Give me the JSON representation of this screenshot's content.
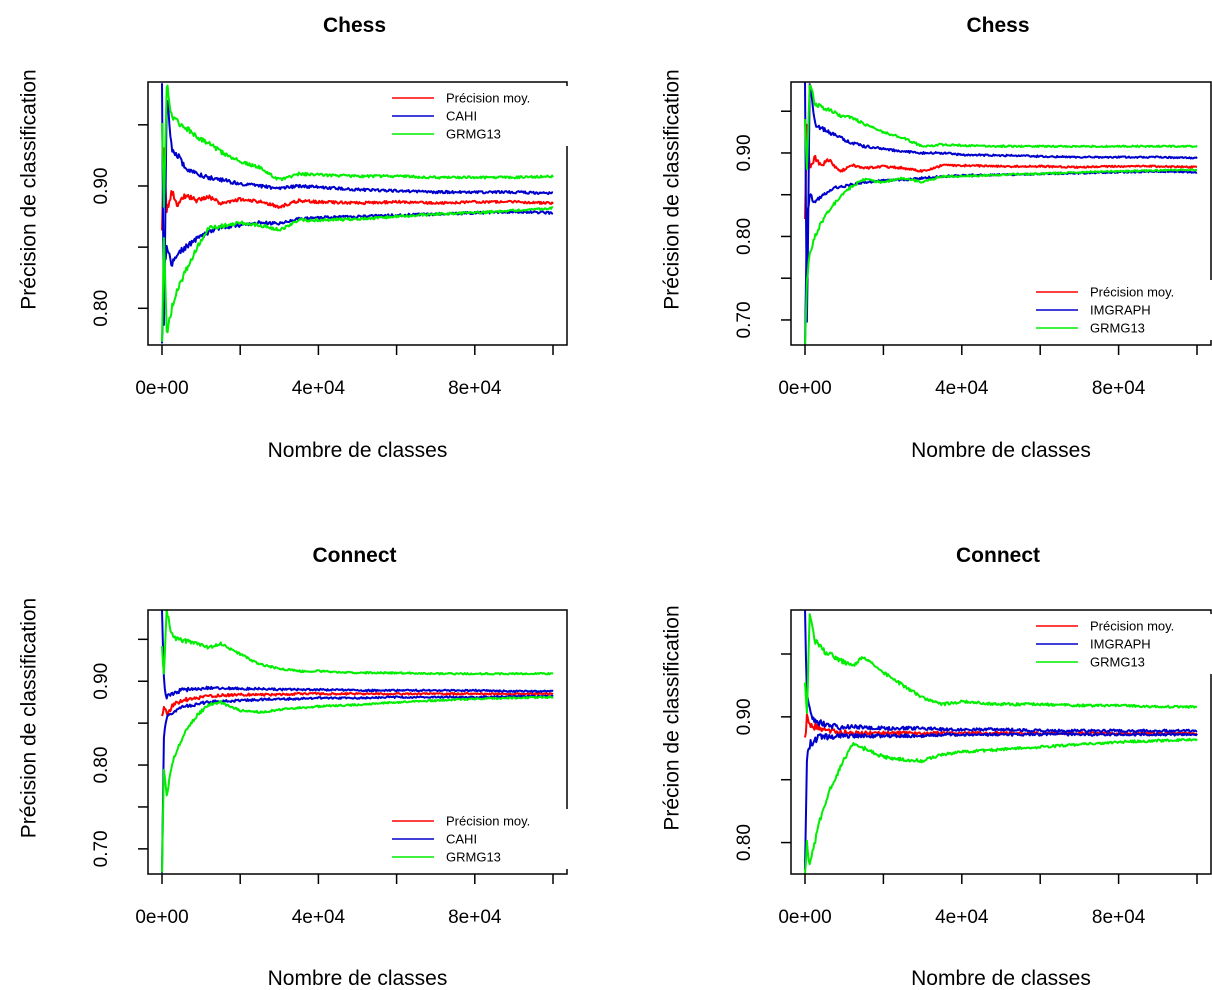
{
  "chart_data": [
    {
      "type": "line",
      "title": "Chess",
      "xlabel": "Nombre de classes",
      "ylabel": "Précision de classification",
      "xlim": [
        0,
        100000
      ],
      "ylim": [
        0.77,
        0.985
      ],
      "xticks": [
        "0e+00",
        "4e+04",
        "8e+04"
      ],
      "yticks": [
        "0.80",
        "0.90"
      ],
      "legend_position": "top-right",
      "series": [
        {
          "name": "Précision moy.",
          "color": "#ff0000",
          "x": [
            0,
            500,
            1200,
            2500,
            4000,
            6000,
            9000,
            12000,
            15000,
            20000,
            25000,
            30000,
            35000,
            40000,
            50000,
            60000,
            70000,
            80000,
            90000,
            100000
          ],
          "y": [
            0.86,
            0.935,
            0.88,
            0.895,
            0.885,
            0.892,
            0.888,
            0.891,
            0.886,
            0.889,
            0.887,
            0.883,
            0.888,
            0.887,
            0.886,
            0.887,
            0.886,
            0.887,
            0.887,
            0.886
          ]
        },
        {
          "name": "CAHI",
          "color": "#0000cc",
          "x": [
            0,
            500,
            1200,
            2500,
            4000,
            6000,
            9000,
            12000,
            15000,
            20000,
            25000,
            30000,
            35000,
            40000,
            50000,
            60000,
            70000,
            80000,
            90000,
            100000
          ],
          "y": [
            0.985,
            0.78,
            0.975,
            0.93,
            0.925,
            0.915,
            0.91,
            0.907,
            0.905,
            0.902,
            0.9,
            0.898,
            0.9,
            0.899,
            0.897,
            0.896,
            0.895,
            0.895,
            0.895,
            0.894
          ]
        },
        {
          "name": "",
          "color": "#0000cc",
          "x": [
            0,
            500,
            1200,
            2500,
            4000,
            6000,
            9000,
            12000,
            15000,
            20000,
            25000,
            30000,
            35000,
            40000,
            50000,
            60000,
            70000,
            80000,
            90000,
            100000
          ],
          "y": [
            0.77,
            0.83,
            0.85,
            0.835,
            0.845,
            0.85,
            0.857,
            0.862,
            0.866,
            0.868,
            0.87,
            0.869,
            0.873,
            0.874,
            0.875,
            0.876,
            0.877,
            0.878,
            0.879,
            0.878
          ]
        },
        {
          "name": "GRMG13",
          "color": "#00ee00",
          "x": [
            0,
            500,
            1200,
            2500,
            4000,
            6000,
            9000,
            12000,
            15000,
            20000,
            25000,
            30000,
            35000,
            40000,
            50000,
            60000,
            70000,
            80000,
            90000,
            100000
          ],
          "y": [
            0.95,
            0.88,
            0.985,
            0.955,
            0.952,
            0.948,
            0.94,
            0.935,
            0.928,
            0.92,
            0.915,
            0.905,
            0.91,
            0.909,
            0.908,
            0.908,
            0.907,
            0.907,
            0.907,
            0.908
          ]
        },
        {
          "name": "",
          "color": "#00ee00",
          "x": [
            0,
            500,
            1200,
            2500,
            4000,
            6000,
            9000,
            12000,
            15000,
            20000,
            25000,
            30000,
            35000,
            40000,
            50000,
            60000,
            70000,
            80000,
            90000,
            100000
          ],
          "y": [
            0.77,
            0.86,
            0.78,
            0.8,
            0.815,
            0.83,
            0.85,
            0.866,
            0.867,
            0.87,
            0.868,
            0.864,
            0.872,
            0.872,
            0.873,
            0.875,
            0.877,
            0.878,
            0.88,
            0.882
          ]
        }
      ]
    },
    {
      "type": "line",
      "title": "Chess",
      "xlabel": "Nombre de classes",
      "ylabel": "Précision de classification",
      "xlim": [
        0,
        100000
      ],
      "ylim": [
        0.67,
        0.985
      ],
      "xticks": [
        "0e+00",
        "4e+04",
        "8e+04"
      ],
      "yticks": [
        "0.70",
        "0.80",
        "0.90"
      ],
      "legend_position": "bottom-right",
      "series": [
        {
          "name": "Précision moy.",
          "color": "#ff0000",
          "x": [
            0,
            500,
            1200,
            2500,
            4000,
            6000,
            9000,
            12000,
            15000,
            20000,
            25000,
            30000,
            35000,
            40000,
            50000,
            60000,
            70000,
            80000,
            90000,
            100000
          ],
          "y": [
            0.82,
            0.94,
            0.88,
            0.895,
            0.885,
            0.892,
            0.878,
            0.885,
            0.882,
            0.884,
            0.882,
            0.878,
            0.885,
            0.885,
            0.884,
            0.884,
            0.883,
            0.884,
            0.884,
            0.883
          ]
        },
        {
          "name": "IMGRAPH",
          "color": "#0000cc",
          "x": [
            0,
            500,
            1200,
            2500,
            4000,
            6000,
            9000,
            12000,
            15000,
            20000,
            25000,
            30000,
            35000,
            40000,
            50000,
            60000,
            70000,
            80000,
            90000,
            100000
          ],
          "y": [
            0.985,
            0.68,
            0.985,
            0.935,
            0.93,
            0.925,
            0.918,
            0.912,
            0.908,
            0.905,
            0.902,
            0.9,
            0.9,
            0.898,
            0.897,
            0.896,
            0.895,
            0.895,
            0.895,
            0.894
          ]
        },
        {
          "name": "",
          "color": "#0000cc",
          "x": [
            0,
            500,
            1200,
            2500,
            4000,
            6000,
            9000,
            12000,
            15000,
            20000,
            25000,
            30000,
            35000,
            40000,
            50000,
            60000,
            70000,
            80000,
            90000,
            100000
          ],
          "y": [
            0.67,
            0.82,
            0.85,
            0.84,
            0.848,
            0.855,
            0.86,
            0.862,
            0.865,
            0.867,
            0.868,
            0.87,
            0.872,
            0.873,
            0.874,
            0.875,
            0.876,
            0.877,
            0.878,
            0.877
          ]
        },
        {
          "name": "GRMG13",
          "color": "#00ee00",
          "x": [
            0,
            500,
            1200,
            2500,
            4000,
            6000,
            9000,
            12000,
            15000,
            20000,
            25000,
            30000,
            35000,
            40000,
            50000,
            60000,
            70000,
            80000,
            90000,
            100000
          ],
          "y": [
            0.94,
            0.88,
            0.985,
            0.96,
            0.955,
            0.952,
            0.945,
            0.942,
            0.935,
            0.925,
            0.918,
            0.908,
            0.91,
            0.909,
            0.908,
            0.908,
            0.908,
            0.908,
            0.908,
            0.908
          ]
        },
        {
          "name": "",
          "color": "#00ee00",
          "x": [
            0,
            500,
            1200,
            2500,
            4000,
            6000,
            9000,
            12000,
            15000,
            20000,
            25000,
            30000,
            35000,
            40000,
            50000,
            60000,
            70000,
            80000,
            90000,
            100000
          ],
          "y": [
            0.67,
            0.75,
            0.78,
            0.8,
            0.815,
            0.83,
            0.848,
            0.86,
            0.868,
            0.865,
            0.87,
            0.865,
            0.872,
            0.872,
            0.874,
            0.875,
            0.877,
            0.878,
            0.879,
            0.88
          ]
        }
      ]
    },
    {
      "type": "line",
      "title": "Connect",
      "xlabel": "Nombre de classes",
      "ylabel": "Précision de classification",
      "xlim": [
        0,
        100000
      ],
      "ylim": [
        0.67,
        0.985
      ],
      "xticks": [
        "0e+00",
        "4e+04",
        "8e+04"
      ],
      "yticks": [
        "0.70",
        "0.80",
        "0.90"
      ],
      "legend_position": "bottom-right",
      "series": [
        {
          "name": "Précision moy.",
          "color": "#ff0000",
          "x": [
            0,
            500,
            1200,
            2500,
            4000,
            6000,
            9000,
            12000,
            15000,
            20000,
            25000,
            30000,
            35000,
            40000,
            50000,
            60000,
            70000,
            80000,
            90000,
            100000
          ],
          "y": [
            0.86,
            0.87,
            0.86,
            0.87,
            0.875,
            0.878,
            0.88,
            0.882,
            0.883,
            0.884,
            0.884,
            0.884,
            0.885,
            0.885,
            0.885,
            0.885,
            0.885,
            0.885,
            0.885,
            0.885
          ]
        },
        {
          "name": "CAHI",
          "color": "#0000cc",
          "x": [
            0,
            500,
            1200,
            2500,
            4000,
            6000,
            9000,
            12000,
            15000,
            20000,
            25000,
            30000,
            35000,
            40000,
            50000,
            60000,
            70000,
            80000,
            90000,
            100000
          ],
          "y": [
            0.985,
            0.9,
            0.88,
            0.885,
            0.888,
            0.89,
            0.891,
            0.892,
            0.892,
            0.891,
            0.891,
            0.89,
            0.89,
            0.89,
            0.889,
            0.889,
            0.889,
            0.889,
            0.888,
            0.888
          ]
        },
        {
          "name": "",
          "color": "#0000cc",
          "x": [
            0,
            500,
            1200,
            2500,
            4000,
            6000,
            9000,
            12000,
            15000,
            20000,
            25000,
            30000,
            35000,
            40000,
            50000,
            60000,
            70000,
            80000,
            90000,
            100000
          ],
          "y": [
            0.67,
            0.84,
            0.855,
            0.862,
            0.866,
            0.87,
            0.873,
            0.875,
            0.876,
            0.877,
            0.878,
            0.879,
            0.879,
            0.88,
            0.88,
            0.881,
            0.881,
            0.881,
            0.882,
            0.882
          ]
        },
        {
          "name": "GRMG13",
          "color": "#00ee00",
          "x": [
            0,
            500,
            1200,
            2500,
            4000,
            6000,
            9000,
            12000,
            15000,
            20000,
            25000,
            30000,
            35000,
            40000,
            50000,
            60000,
            70000,
            80000,
            90000,
            100000
          ],
          "y": [
            0.94,
            0.91,
            0.985,
            0.955,
            0.95,
            0.948,
            0.945,
            0.94,
            0.945,
            0.932,
            0.92,
            0.915,
            0.912,
            0.912,
            0.91,
            0.91,
            0.909,
            0.909,
            0.909,
            0.909
          ]
        },
        {
          "name": "",
          "color": "#00ee00",
          "x": [
            0,
            500,
            1200,
            2500,
            4000,
            6000,
            9000,
            12000,
            15000,
            20000,
            25000,
            30000,
            35000,
            40000,
            50000,
            60000,
            70000,
            80000,
            90000,
            100000
          ],
          "y": [
            0.67,
            0.8,
            0.76,
            0.8,
            0.82,
            0.84,
            0.86,
            0.872,
            0.875,
            0.865,
            0.863,
            0.866,
            0.868,
            0.87,
            0.872,
            0.875,
            0.877,
            0.879,
            0.88,
            0.881
          ]
        }
      ]
    },
    {
      "type": "line",
      "title": "Connect",
      "xlabel": "Nombre de classes",
      "ylabel": "Précion de classification",
      "xlim": [
        0,
        100000
      ],
      "ylim": [
        0.775,
        0.985
      ],
      "xticks": [
        "0e+00",
        "4e+04",
        "8e+04"
      ],
      "yticks": [
        "0.80",
        "0.90"
      ],
      "legend_position": "top-right",
      "series": [
        {
          "name": "Précision moy.",
          "color": "#ff0000",
          "x": [
            0,
            500,
            1200,
            2500,
            4000,
            6000,
            9000,
            12000,
            15000,
            20000,
            25000,
            30000,
            35000,
            40000,
            50000,
            60000,
            70000,
            80000,
            90000,
            100000
          ],
          "y": [
            0.88,
            0.9,
            0.895,
            0.892,
            0.89,
            0.889,
            0.888,
            0.887,
            0.887,
            0.887,
            0.887,
            0.887,
            0.887,
            0.887,
            0.887,
            0.887,
            0.887,
            0.887,
            0.887,
            0.887
          ]
        },
        {
          "name": "IMGRAPH",
          "color": "#0000cc",
          "x": [
            0,
            500,
            1200,
            2500,
            4000,
            6000,
            9000,
            12000,
            15000,
            20000,
            25000,
            30000,
            35000,
            40000,
            50000,
            60000,
            70000,
            80000,
            90000,
            100000
          ],
          "y": [
            0.985,
            0.915,
            0.905,
            0.898,
            0.895,
            0.893,
            0.892,
            0.892,
            0.892,
            0.891,
            0.891,
            0.891,
            0.89,
            0.89,
            0.89,
            0.889,
            0.889,
            0.889,
            0.889,
            0.889
          ]
        },
        {
          "name": "",
          "color": "#0000cc",
          "x": [
            0,
            500,
            1200,
            2500,
            4000,
            6000,
            9000,
            12000,
            15000,
            20000,
            25000,
            30000,
            35000,
            40000,
            50000,
            60000,
            70000,
            80000,
            90000,
            100000
          ],
          "y": [
            0.775,
            0.87,
            0.878,
            0.882,
            0.884,
            0.884,
            0.885,
            0.885,
            0.885,
            0.885,
            0.885,
            0.885,
            0.886,
            0.886,
            0.886,
            0.886,
            0.886,
            0.886,
            0.886,
            0.886
          ]
        },
        {
          "name": "GRMG13",
          "color": "#00ee00",
          "x": [
            0,
            500,
            1200,
            2500,
            4000,
            6000,
            9000,
            12000,
            15000,
            20000,
            25000,
            30000,
            35000,
            40000,
            50000,
            60000,
            70000,
            80000,
            90000,
            100000
          ],
          "y": [
            0.93,
            0.9,
            0.985,
            0.96,
            0.955,
            0.95,
            0.945,
            0.94,
            0.948,
            0.935,
            0.925,
            0.915,
            0.91,
            0.912,
            0.91,
            0.91,
            0.909,
            0.909,
            0.908,
            0.908
          ]
        },
        {
          "name": "",
          "color": "#00ee00",
          "x": [
            0,
            500,
            1200,
            2500,
            4000,
            6000,
            9000,
            12000,
            15000,
            20000,
            25000,
            30000,
            35000,
            40000,
            50000,
            60000,
            70000,
            80000,
            90000,
            100000
          ],
          "y": [
            0.775,
            0.8,
            0.78,
            0.8,
            0.82,
            0.84,
            0.86,
            0.878,
            0.875,
            0.868,
            0.866,
            0.865,
            0.87,
            0.872,
            0.874,
            0.876,
            0.878,
            0.88,
            0.881,
            0.882
          ]
        }
      ]
    }
  ]
}
